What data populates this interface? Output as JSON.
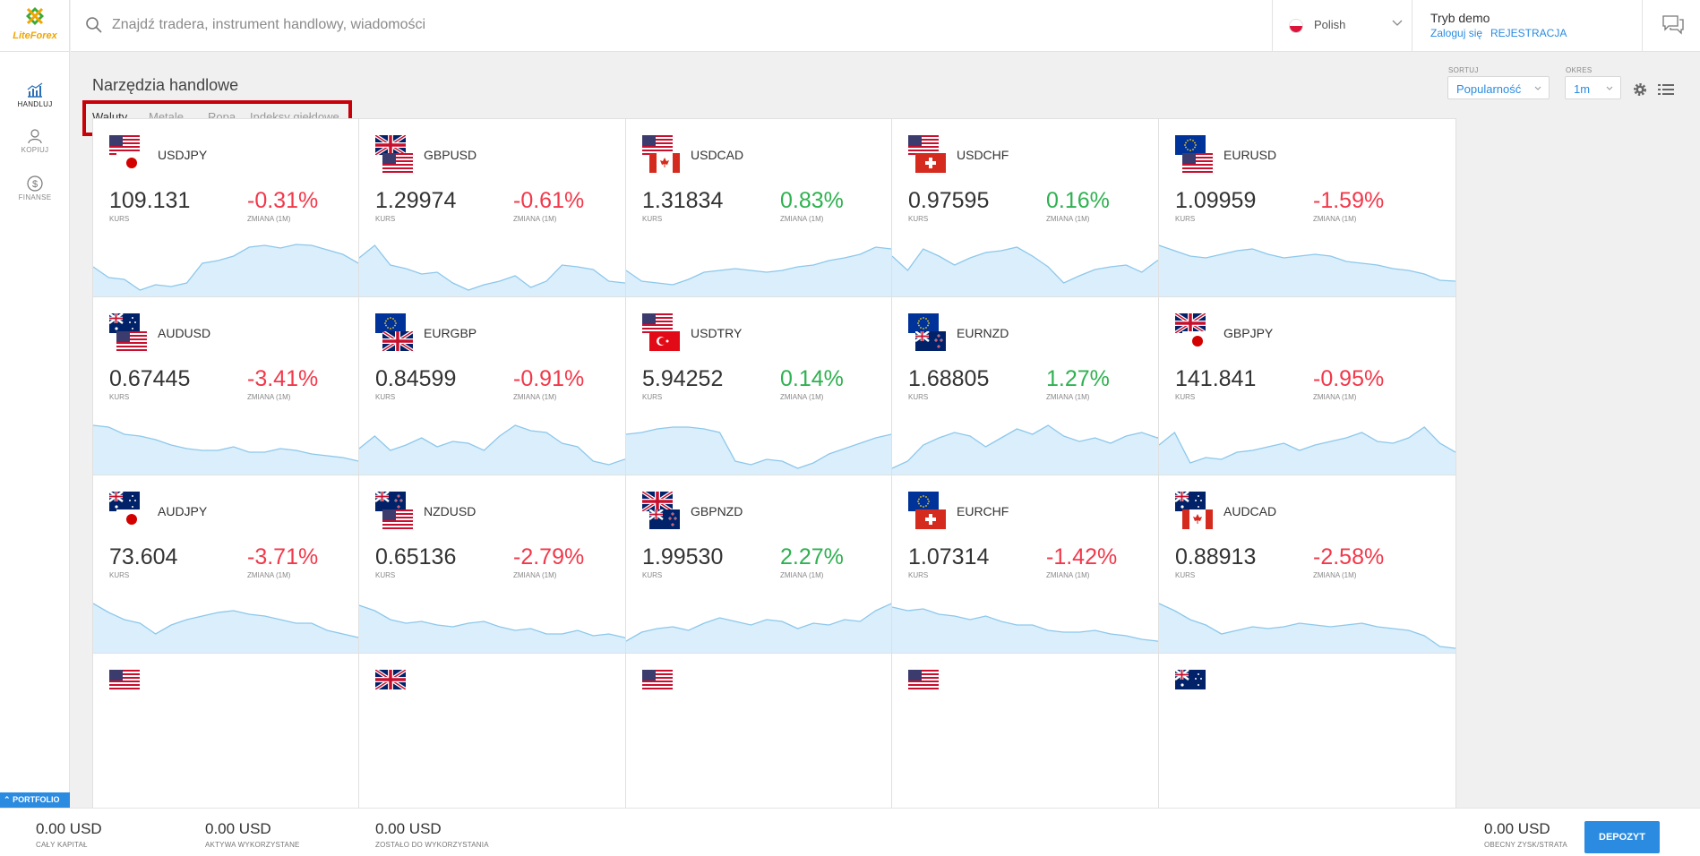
{
  "app": {
    "logo_text": "LiteForex"
  },
  "sidebar": {
    "items": [
      {
        "label": "HANDLUJ"
      },
      {
        "label": "KOPIUJ"
      },
      {
        "label": "FINANSE"
      }
    ],
    "portfolio_label": "PORTFOLIO"
  },
  "header": {
    "search_placeholder": "Znajdź tradera, instrument handlowy, wiadomości",
    "language": "Polish",
    "account_mode": "Tryb demo",
    "login_label": "Zaloguj się",
    "register_label": "REJESTRACJA"
  },
  "main": {
    "title": "Narzędzia handlowe",
    "tabs": [
      "Waluty",
      "Metale",
      "Ropa",
      "Indeksy giełdowe"
    ],
    "sort_label": "SORTUJ",
    "sort_value": "Popularność",
    "period_label": "OKRES",
    "period_value": "1m",
    "rate_label": "KURS",
    "change_label": "ZMIANA (1M)"
  },
  "instruments": [
    {
      "pair": "USDJPY",
      "rate": "109.131",
      "change": "-0.31%",
      "direction": "neg",
      "flags": [
        "us",
        "jp"
      ],
      "trend": [
        0.48,
        0.36,
        0.34,
        0.22,
        0.28,
        0.26,
        0.3,
        0.52,
        0.55,
        0.6,
        0.7,
        0.72,
        0.69,
        0.73,
        0.72,
        0.67,
        0.62,
        0.52,
        0.45,
        0.48
      ]
    },
    {
      "pair": "GBPUSD",
      "rate": "1.29974",
      "change": "-0.61%",
      "direction": "neg",
      "flags": [
        "gb",
        "us"
      ],
      "trend": [
        0.58,
        0.72,
        0.5,
        0.46,
        0.4,
        0.42,
        0.3,
        0.22,
        0.28,
        0.32,
        0.38,
        0.25,
        0.32,
        0.5,
        0.48,
        0.45,
        0.32,
        0.3,
        0.3,
        0.3
      ]
    },
    {
      "pair": "USDCAD",
      "rate": "1.31834",
      "change": "0.83%",
      "direction": "pos",
      "flags": [
        "us",
        "ca"
      ],
      "trend": [
        0.44,
        0.32,
        0.3,
        0.28,
        0.34,
        0.42,
        0.44,
        0.46,
        0.44,
        0.42,
        0.44,
        0.48,
        0.5,
        0.55,
        0.58,
        0.62,
        0.7,
        0.68,
        0.72,
        0.74
      ]
    },
    {
      "pair": "USDCHF",
      "rate": "0.97595",
      "change": "0.16%",
      "direction": "pos",
      "flags": [
        "us",
        "ch"
      ],
      "trend": [
        0.6,
        0.44,
        0.68,
        0.6,
        0.5,
        0.58,
        0.64,
        0.66,
        0.7,
        0.6,
        0.48,
        0.3,
        0.38,
        0.45,
        0.48,
        0.5,
        0.42,
        0.55,
        0.6,
        0.72
      ]
    },
    {
      "pair": "EURUSD",
      "rate": "1.09959",
      "change": "-1.59%",
      "direction": "neg",
      "flags": [
        "eu",
        "us"
      ],
      "trend": [
        0.72,
        0.66,
        0.6,
        0.58,
        0.62,
        0.66,
        0.68,
        0.62,
        0.58,
        0.6,
        0.62,
        0.6,
        0.54,
        0.52,
        0.5,
        0.46,
        0.44,
        0.4,
        0.33,
        0.32
      ]
    },
    {
      "pair": "AUDUSD",
      "rate": "0.67445",
      "change": "-3.41%",
      "direction": "neg",
      "flags": [
        "au",
        "us"
      ],
      "trend": [
        0.7,
        0.68,
        0.6,
        0.58,
        0.54,
        0.48,
        0.44,
        0.42,
        0.42,
        0.46,
        0.4,
        0.4,
        0.44,
        0.42,
        0.38,
        0.36,
        0.34,
        0.3,
        0.22,
        0.2
      ]
    },
    {
      "pair": "EURGBP",
      "rate": "0.84599",
      "change": "-0.91%",
      "direction": "neg",
      "flags": [
        "eu",
        "gb"
      ],
      "trend": [
        0.44,
        0.58,
        0.42,
        0.48,
        0.56,
        0.46,
        0.52,
        0.5,
        0.42,
        0.58,
        0.7,
        0.64,
        0.62,
        0.5,
        0.46,
        0.3,
        0.26,
        0.32,
        0.28,
        0.34
      ]
    },
    {
      "pair": "USDTRY",
      "rate": "5.94252",
      "change": "0.14%",
      "direction": "pos",
      "flags": [
        "us",
        "tr"
      ],
      "trend": [
        0.6,
        0.62,
        0.66,
        0.68,
        0.68,
        0.66,
        0.62,
        0.3,
        0.26,
        0.32,
        0.3,
        0.22,
        0.28,
        0.38,
        0.44,
        0.5,
        0.56,
        0.6,
        0.56,
        0.58
      ]
    },
    {
      "pair": "EURNZD",
      "rate": "1.68805",
      "change": "1.27%",
      "direction": "pos",
      "flags": [
        "eu",
        "nz"
      ],
      "trend": [
        0.22,
        0.3,
        0.48,
        0.56,
        0.62,
        0.58,
        0.46,
        0.56,
        0.66,
        0.6,
        0.7,
        0.58,
        0.52,
        0.56,
        0.5,
        0.58,
        0.62,
        0.56,
        0.64,
        0.72
      ]
    },
    {
      "pair": "GBPJPY",
      "rate": "141.841",
      "change": "-0.95%",
      "direction": "neg",
      "flags": [
        "gb",
        "jp"
      ],
      "trend": [
        0.48,
        0.62,
        0.28,
        0.34,
        0.32,
        0.4,
        0.42,
        0.46,
        0.5,
        0.42,
        0.48,
        0.52,
        0.56,
        0.62,
        0.52,
        0.5,
        0.56,
        0.68,
        0.5,
        0.4
      ]
    },
    {
      "pair": "AUDJPY",
      "rate": "73.604",
      "change": "-3.71%",
      "direction": "neg",
      "flags": [
        "au",
        "jp"
      ],
      "trend": [
        0.7,
        0.6,
        0.52,
        0.48,
        0.36,
        0.46,
        0.52,
        0.56,
        0.6,
        0.62,
        0.58,
        0.56,
        0.52,
        0.48,
        0.48,
        0.4,
        0.36,
        0.32,
        0.2,
        0.2
      ]
    },
    {
      "pair": "NZDUSD",
      "rate": "0.65136",
      "change": "-2.79%",
      "direction": "neg",
      "flags": [
        "nz",
        "us"
      ],
      "trend": [
        0.68,
        0.62,
        0.52,
        0.48,
        0.5,
        0.46,
        0.44,
        0.48,
        0.5,
        0.44,
        0.4,
        0.42,
        0.36,
        0.36,
        0.4,
        0.34,
        0.36,
        0.32,
        0.24,
        0.2
      ]
    },
    {
      "pair": "GBPNZD",
      "rate": "1.99530",
      "change": "2.27%",
      "direction": "pos",
      "flags": [
        "gb",
        "nz"
      ],
      "trend": [
        0.28,
        0.38,
        0.42,
        0.44,
        0.4,
        0.48,
        0.54,
        0.5,
        0.46,
        0.52,
        0.5,
        0.42,
        0.48,
        0.46,
        0.52,
        0.5,
        0.62,
        0.7,
        0.66,
        0.72
      ]
    },
    {
      "pair": "EURCHF",
      "rate": "1.07314",
      "change": "-1.42%",
      "direction": "neg",
      "flags": [
        "eu",
        "ch"
      ],
      "trend": [
        0.66,
        0.62,
        0.64,
        0.58,
        0.56,
        0.52,
        0.56,
        0.5,
        0.46,
        0.46,
        0.4,
        0.38,
        0.38,
        0.4,
        0.36,
        0.34,
        0.3,
        0.28,
        0.22,
        0.32
      ]
    },
    {
      "pair": "AUDCAD",
      "rate": "0.88913",
      "change": "-2.58%",
      "direction": "neg",
      "flags": [
        "au",
        "ca"
      ],
      "trend": [
        0.7,
        0.62,
        0.52,
        0.46,
        0.36,
        0.4,
        0.44,
        0.42,
        0.44,
        0.48,
        0.46,
        0.44,
        0.46,
        0.48,
        0.44,
        0.42,
        0.4,
        0.34,
        0.22,
        0.2
      ]
    }
  ],
  "bottom": {
    "total_capital": {
      "value": "0.00 USD",
      "label": "CAŁY KAPITAŁ"
    },
    "assets_used": {
      "value": "0.00 USD",
      "label": "AKTYWA WYKORZYSTANE"
    },
    "remaining": {
      "value": "0.00 USD",
      "label": "ZOSTAŁO DO WYKORZYSTANIA"
    },
    "current_pnl": {
      "value": "0.00 USD",
      "label": "OBECNY ZYSK/STRATA"
    },
    "deposit_label": "DEPOZYT"
  },
  "colors": {
    "accent": "#2a8be0",
    "negative": "#f2384a",
    "positive": "#2fb150",
    "chart_fill": "#dbeefb",
    "chart_line": "#8cc8ec"
  }
}
